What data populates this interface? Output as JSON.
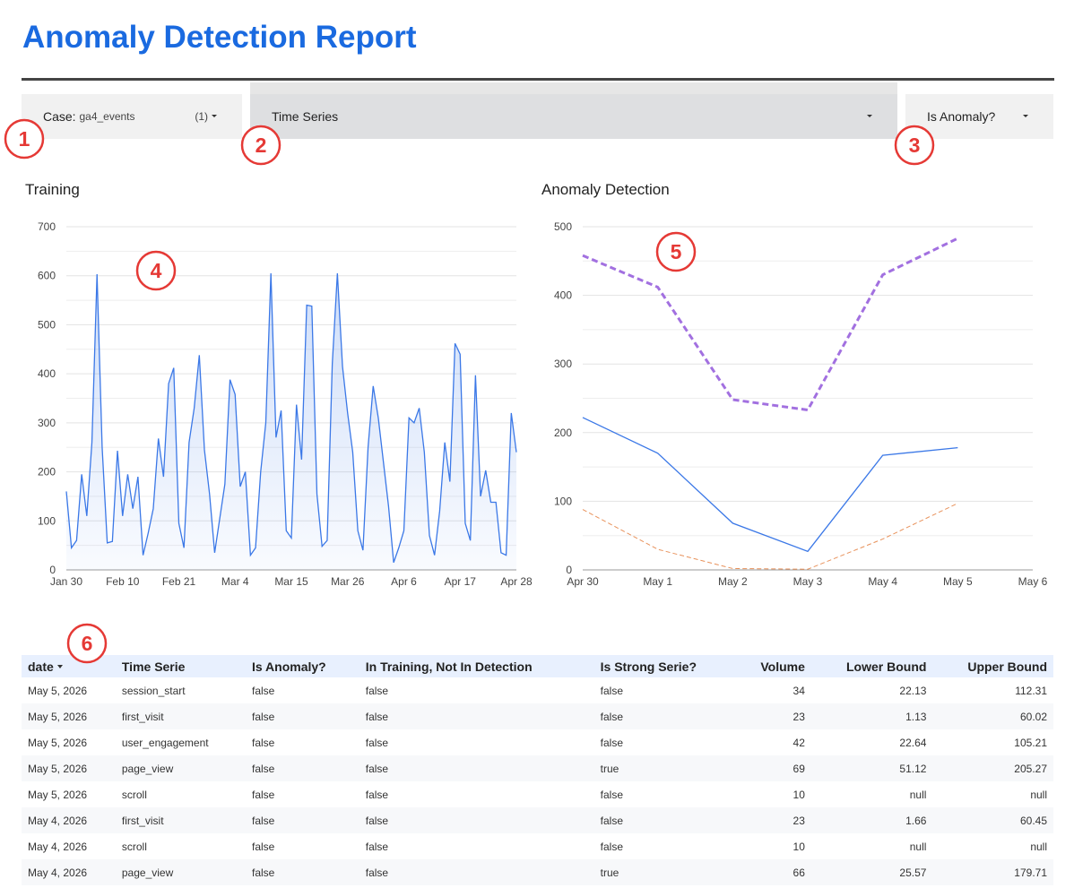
{
  "header": {
    "title": "Anomaly Detection Report"
  },
  "filters": [
    {
      "label": "Case:",
      "value": "ga4_events",
      "count": "(1)"
    },
    {
      "label": "Time Series"
    },
    {
      "label": "Is Anomaly?"
    }
  ],
  "annotations": [
    "1",
    "2",
    "3",
    "4",
    "5",
    "6"
  ],
  "chart_data": [
    {
      "type": "area",
      "title": "Training",
      "color": "#3b78e7",
      "grid": true,
      "minor_grid": true,
      "ylim": [
        0,
        700
      ],
      "yticks": [
        0,
        100,
        200,
        300,
        400,
        500,
        600,
        700
      ],
      "categories": [
        "Jan 30",
        null,
        null,
        null,
        null,
        null,
        null,
        null,
        null,
        null,
        null,
        "Feb 10",
        null,
        null,
        null,
        null,
        null,
        null,
        null,
        null,
        null,
        null,
        "Feb 21",
        null,
        null,
        null,
        null,
        null,
        null,
        null,
        null,
        null,
        null,
        "Mar 4",
        null,
        null,
        null,
        null,
        null,
        null,
        null,
        null,
        null,
        null,
        "Mar 15",
        null,
        null,
        null,
        null,
        null,
        null,
        null,
        null,
        null,
        null,
        "Mar 26",
        null,
        null,
        null,
        null,
        null,
        null,
        null,
        null,
        null,
        null,
        "Apr 6",
        null,
        null,
        null,
        null,
        null,
        null,
        null,
        null,
        null,
        null,
        "Apr 17",
        null,
        null,
        null,
        null,
        null,
        null,
        null,
        null,
        null,
        null,
        "Apr 28"
      ],
      "values": [
        160,
        45,
        60,
        195,
        110,
        260,
        603,
        250,
        55,
        58,
        243,
        110,
        195,
        125,
        190,
        30,
        75,
        125,
        268,
        190,
        380,
        412,
        95,
        45,
        260,
        330,
        438,
        245,
        155,
        35,
        105,
        175,
        388,
        358,
        170,
        200,
        30,
        45,
        200,
        300,
        605,
        270,
        325,
        80,
        65,
        337,
        225,
        540,
        538,
        155,
        48,
        60,
        420,
        605,
        415,
        320,
        240,
        80,
        40,
        250,
        375,
        310,
        220,
        130,
        15,
        45,
        80,
        310,
        300,
        330,
        240,
        70,
        30,
        120,
        260,
        180,
        462,
        440,
        95,
        60,
        397,
        150,
        203,
        138,
        138,
        35,
        30,
        320,
        240
      ]
    },
    {
      "type": "line",
      "title": "Anomaly Detection",
      "grid": true,
      "minor_grid": true,
      "ylim": [
        0,
        500
      ],
      "yticks": [
        0,
        100,
        200,
        300,
        400,
        500
      ],
      "categories": [
        "Apr 30",
        "May 1",
        "May 2",
        "May 3",
        "May 4",
        "May 5",
        "May 6"
      ],
      "series": [
        {
          "color": "#3b78e7",
          "line_width": 1.3,
          "dash": false,
          "values": [
            222,
            170,
            68,
            27,
            167,
            178,
            null
          ]
        },
        {
          "color": "#a270e0",
          "line_width": 3,
          "dash": true,
          "values": [
            458,
            412,
            248,
            233,
            430,
            483,
            null
          ]
        },
        {
          "color": "#e8915a",
          "line_width": 1,
          "dash": true,
          "values": [
            88,
            30,
            2,
            1,
            45,
            97,
            null
          ]
        }
      ]
    }
  ],
  "table": {
    "columns": [
      "date",
      "Time Serie",
      "Is Anomaly?",
      "In Training, Not In Detection",
      "Is Strong Serie?",
      "Volume",
      "Lower Bound",
      "Upper Bound"
    ],
    "rows": [
      [
        "May 5, 2026",
        "session_start",
        "false",
        "false",
        "false",
        34,
        22.13,
        112.31
      ],
      [
        "May 5, 2026",
        "first_visit",
        "false",
        "false",
        "false",
        23,
        1.13,
        60.02
      ],
      [
        "May 5, 2026",
        "user_engagement",
        "false",
        "false",
        "false",
        42,
        22.64,
        105.21
      ],
      [
        "May 5, 2026",
        "page_view",
        "false",
        "false",
        "true",
        69,
        51.12,
        205.27
      ],
      [
        "May 5, 2026",
        "scroll",
        "false",
        "false",
        "false",
        10,
        "null",
        "null"
      ],
      [
        "May 4, 2026",
        "first_visit",
        "false",
        "false",
        "false",
        23,
        1.66,
        60.45
      ],
      [
        "May 4, 2026",
        "scroll",
        "false",
        "false",
        "false",
        10,
        "null",
        "null"
      ],
      [
        "May 4, 2026",
        "page_view",
        "false",
        "false",
        "true",
        66,
        25.57,
        179.71
      ]
    ]
  }
}
